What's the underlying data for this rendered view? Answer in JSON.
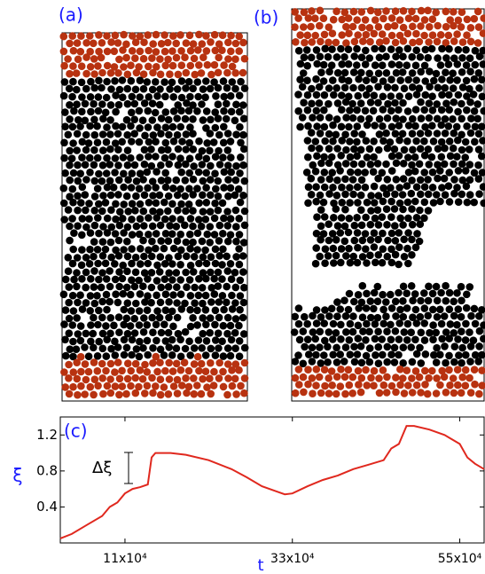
{
  "chart_data": {
    "type": "line",
    "panel_labels": [
      "(a)",
      "(b)",
      "(c)"
    ],
    "annotation": "Δξ",
    "xlabel": "t",
    "ylabel": "ξ",
    "x": [
      25000,
      40000,
      60000,
      80000,
      90000,
      100000,
      110000,
      120000,
      130000,
      140000,
      145000,
      150000,
      170000,
      190000,
      220000,
      250000,
      270000,
      290000,
      310000,
      320000,
      330000,
      350000,
      370000,
      390000,
      410000,
      430000,
      450000,
      460000,
      470000,
      480000,
      490000,
      510000,
      530000,
      550000,
      560000,
      570000,
      582000
    ],
    "series": [
      {
        "color": "#e0281e",
        "values": [
          0.05,
          0.1,
          0.2,
          0.3,
          0.4,
          0.45,
          0.55,
          0.6,
          0.62,
          0.65,
          0.95,
          1.0,
          1.0,
          0.98,
          0.92,
          0.82,
          0.73,
          0.63,
          0.57,
          0.54,
          0.55,
          0.63,
          0.7,
          0.75,
          0.82,
          0.87,
          0.92,
          1.05,
          1.1,
          1.3,
          1.3,
          1.26,
          1.2,
          1.1,
          0.95,
          0.88,
          0.82
        ]
      }
    ],
    "xlim": [
      25000,
      582000
    ],
    "ylim": [
      0,
      1.4
    ],
    "xticks": [
      {
        "value": 110000,
        "label": "11x10⁴"
      },
      {
        "value": 330000,
        "label": "33x10⁴"
      },
      {
        "value": 550000,
        "label": "55x10⁴"
      }
    ],
    "yticks": [
      0.4,
      0.8,
      1.2
    ]
  }
}
